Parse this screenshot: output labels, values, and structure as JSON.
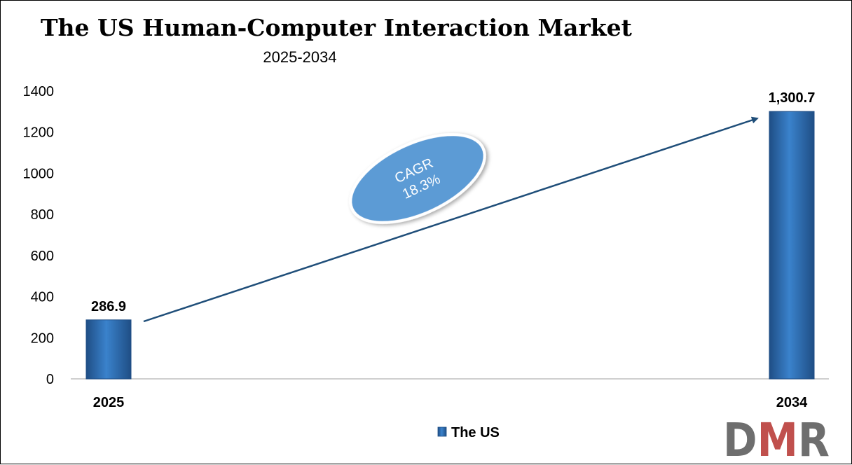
{
  "chart_data": {
    "type": "bar",
    "title": "The US Human-Computer Interaction Market",
    "subtitle": "2025-2034",
    "categories": [
      "2025",
      "2034"
    ],
    "series": [
      {
        "name": "The US",
        "values": [
          286.9,
          1300.7
        ],
        "labels": [
          "286.9",
          "1,300.7"
        ]
      }
    ],
    "ylim": [
      0,
      1400
    ],
    "yticks": [
      0,
      200,
      400,
      600,
      800,
      1000,
      1200,
      1400
    ],
    "legend": "bottom-center",
    "grid": false,
    "colors": {
      "bar": "#2E75C0",
      "bar_dark": "#1F4E85",
      "arrow": "#1F4E79",
      "ellipse": "#5B9BD5"
    }
  },
  "annotation": {
    "cagr_label": "CAGR",
    "cagr_value": "18.3%"
  },
  "logo": {
    "text": "DMR",
    "colors": {
      "d": "#6E6E6E",
      "m": "#C0504D",
      "r": "#6E6E6E"
    }
  }
}
